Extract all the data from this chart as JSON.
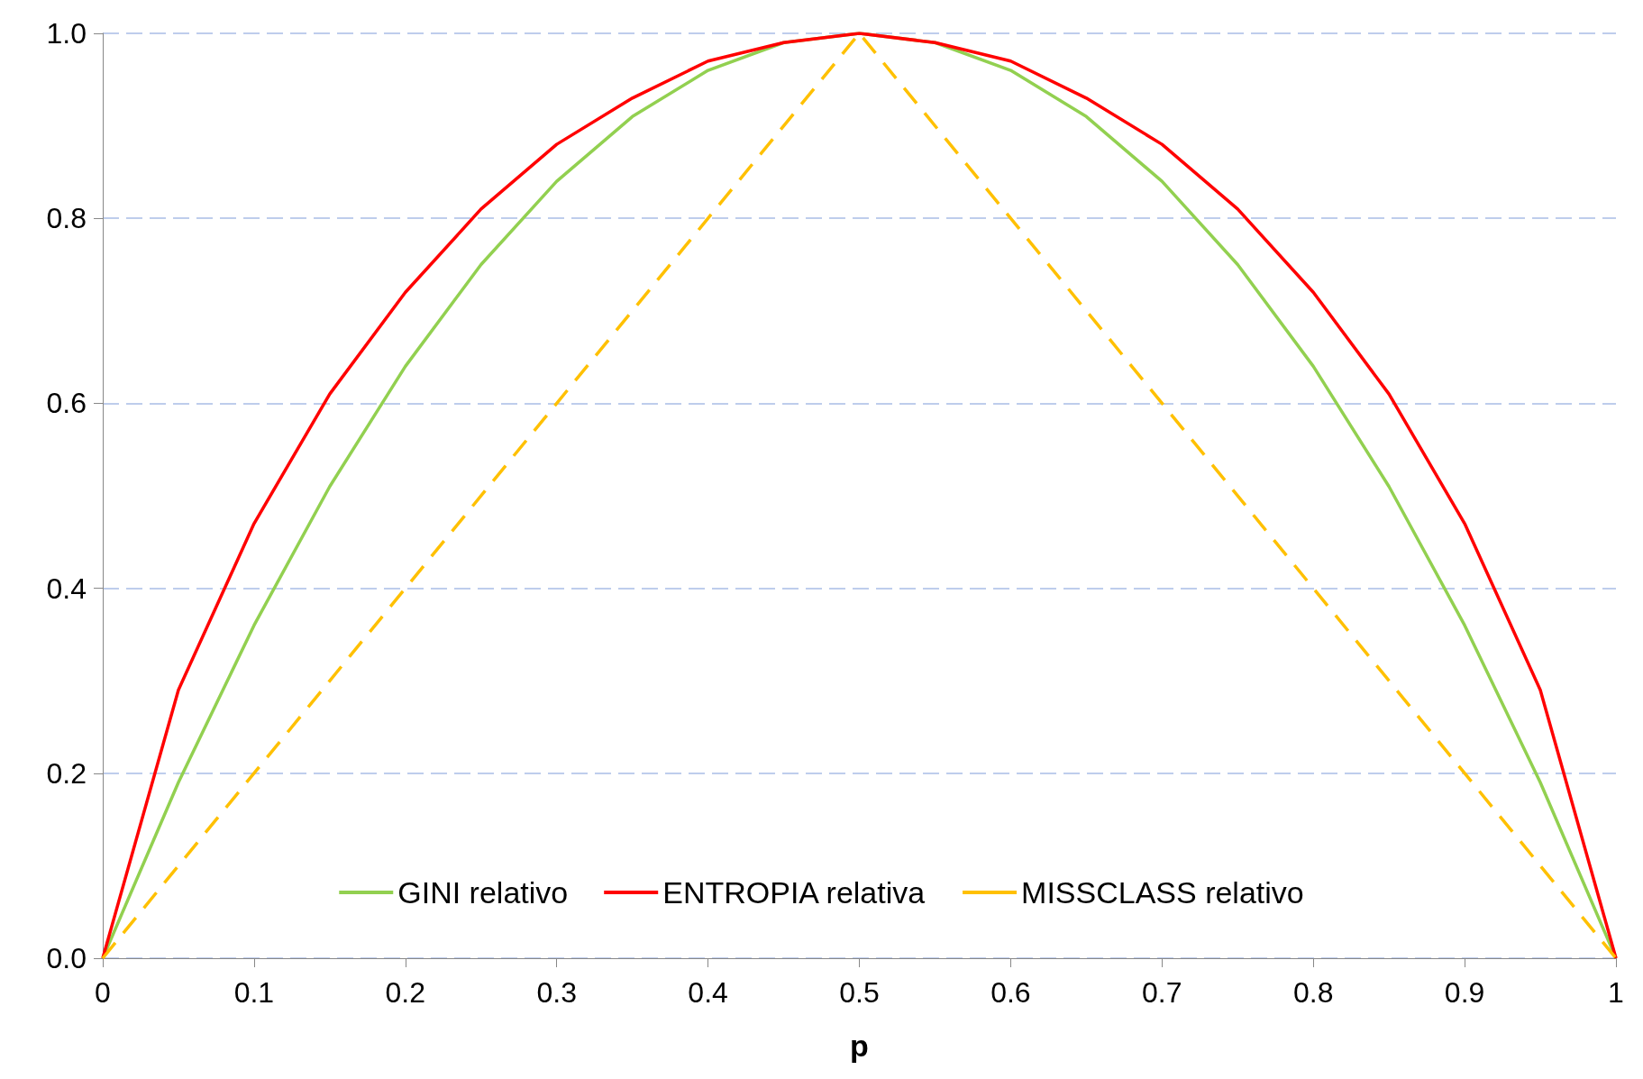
{
  "chart_data": {
    "type": "line",
    "xlabel": "p",
    "x": [
      0,
      0.05,
      0.1,
      0.15,
      0.2,
      0.25,
      0.3,
      0.35,
      0.4,
      0.45,
      0.5,
      0.55,
      0.6,
      0.65,
      0.7,
      0.75,
      0.8,
      0.85,
      0.9,
      0.95,
      1
    ],
    "series": [
      {
        "name": "GINI relativo",
        "color": "#92d050",
        "values": [
          0,
          0.19,
          0.36,
          0.51,
          0.64,
          0.75,
          0.84,
          0.91,
          0.96,
          0.99,
          1,
          0.99,
          0.96,
          0.91,
          0.84,
          0.75,
          0.64,
          0.51,
          0.36,
          0.19,
          0
        ]
      },
      {
        "name": "ENTROPIA relativa",
        "color": "#ff0000",
        "values": [
          0,
          0.29,
          0.47,
          0.61,
          0.72,
          0.81,
          0.88,
          0.93,
          0.97,
          0.99,
          1,
          0.99,
          0.97,
          0.93,
          0.88,
          0.81,
          0.72,
          0.61,
          0.47,
          0.29,
          0
        ]
      },
      {
        "name": "MISSCLASS relativo",
        "color": "#ffc000",
        "line_style": "dashed",
        "x": [
          0,
          0.5,
          1
        ],
        "values": [
          0,
          1,
          0
        ]
      }
    ],
    "xlim": [
      0,
      1
    ],
    "xticks": [
      0,
      0.1,
      0.2,
      0.3,
      0.4,
      0.5,
      0.6,
      0.7,
      0.8,
      0.9,
      1
    ],
    "ylim": [
      0,
      1
    ],
    "yticks": [
      {
        "value": 0,
        "label": "0.0"
      },
      0.2,
      0.4,
      0.6,
      0.8,
      {
        "value": 1,
        "label": "1.0"
      }
    ],
    "grid": "y",
    "legend": "bottom",
    "marker": "none",
    "line_style": "solid"
  }
}
